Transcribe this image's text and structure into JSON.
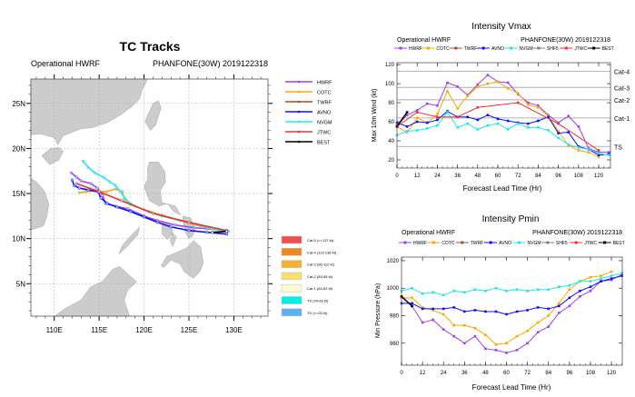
{
  "colors": {
    "HWRF": "#a040f0",
    "COTC": "#ffa500",
    "TWRF": "#a0522d",
    "AVNO": "#1010f0",
    "NVGM": "#20e8e8",
    "SHF5": "#808080",
    "JTWC": "#f03030",
    "BEST": "#000000"
  },
  "chart_data": [
    {
      "type": "line",
      "title": "TC Tracks",
      "subtitle_left": "Operational HWRF",
      "subtitle_right": "PHANFONE(30W) 2019122318",
      "xlim": [
        107.4,
        133.8
      ],
      "ylim": [
        1.4,
        27.7
      ],
      "x_ticks": [
        "110E",
        "115E",
        "120E",
        "125E",
        "130E"
      ],
      "x_tick_values": [
        110,
        115,
        120,
        125,
        130
      ],
      "y_ticks": [
        "5N",
        "10N",
        "15N",
        "20N",
        "25N"
      ],
      "y_tick_values": [
        5,
        10,
        15,
        20,
        25
      ],
      "grid": true,
      "legend": [
        "HWRF",
        "COTC",
        "TWRF",
        "AVNO",
        "NVGM",
        "JTWC",
        "BEST"
      ],
      "legend_placement": "right",
      "category_legend": [
        {
          "label": "Cat-5 (>=137 kt)",
          "color": "#f05050"
        },
        {
          "label": "Cat-4 (113-136 kt)",
          "color": "#f08820"
        },
        {
          "label": "Cat-3 (96-112 kt)",
          "color": "#f8b030"
        },
        {
          "label": "Cat-2 (83-95 kt)",
          "color": "#f8e070"
        },
        {
          "label": "Cat-1 (64-82 kt)",
          "color": "#fffcd0"
        },
        {
          "label": "TS (34-63 kt)",
          "color": "#00f0e8"
        },
        {
          "label": "TD (<=33 kt)",
          "color": "#60b0f8"
        }
      ],
      "series": [
        {
          "name": "HWRF",
          "points": [
            [
              129.2,
              10.9
            ],
            [
              127,
              11.1
            ],
            [
              125.6,
              11.2
            ],
            [
              123.5,
              11.5
            ],
            [
              121.5,
              12.0
            ],
            [
              120,
              12.5
            ],
            [
              118.2,
              13.3
            ],
            [
              116.8,
              13.6
            ],
            [
              115.7,
              13.9
            ],
            [
              115.4,
              14.8
            ],
            [
              114.8,
              15.6
            ],
            [
              114.1,
              16.1
            ],
            [
              113,
              16.4
            ],
            [
              112.5,
              16.8
            ],
            [
              111.9,
              17.3
            ]
          ]
        },
        {
          "name": "COTC",
          "points": [
            [
              129.2,
              10.8
            ],
            [
              126.5,
              11.3
            ],
            [
              124,
              12.0
            ],
            [
              122,
              12.6
            ],
            [
              120,
              13.2
            ],
            [
              118.5,
              13.8
            ],
            [
              117.8,
              14.4
            ],
            [
              117.6,
              15.2
            ],
            [
              116.8,
              15.5
            ],
            [
              115.8,
              15.2
            ],
            [
              114.5,
              15.3
            ],
            [
              113.5,
              15.2
            ],
            [
              112.8,
              15.1
            ]
          ]
        },
        {
          "name": "AVNO",
          "points": [
            [
              129.2,
              10.5
            ],
            [
              127,
              10.7
            ],
            [
              125,
              10.9
            ],
            [
              123,
              11.3
            ],
            [
              121.5,
              11.8
            ],
            [
              120,
              12.4
            ],
            [
              118.5,
              13.0
            ],
            [
              117,
              13.5
            ],
            [
              115.9,
              13.9
            ],
            [
              115.2,
              14.5
            ],
            [
              114.9,
              15.2
            ],
            [
              113.8,
              15.4
            ],
            [
              112.8,
              15.6
            ],
            [
              112.2,
              15.9
            ],
            [
              112,
              16.5
            ]
          ]
        },
        {
          "name": "NVGM",
          "points": [
            [
              129.4,
              10.8
            ],
            [
              127.5,
              11.1
            ],
            [
              125.8,
              11.6
            ],
            [
              124,
              12.0
            ],
            [
              122,
              12.5
            ],
            [
              120.5,
              13.0
            ],
            [
              119,
              13.6
            ],
            [
              118,
              14.3
            ],
            [
              117.4,
              15.2
            ],
            [
              116.8,
              15.9
            ],
            [
              116.2,
              16.3
            ],
            [
              115.5,
              16.8
            ],
            [
              114.5,
              17.3
            ],
            [
              113.8,
              17.9
            ],
            [
              113.2,
              18.6
            ]
          ]
        },
        {
          "name": "JTWC",
          "points": [
            [
              129.2,
              10.9
            ],
            [
              125,
              11.8
            ],
            [
              121,
              12.8
            ],
            [
              117.5,
              14.2
            ],
            [
              115,
              15.2
            ],
            [
              112.5,
              16.1
            ]
          ]
        },
        {
          "name": "BEST",
          "points": [
            [
              129.2,
              10.8
            ],
            [
              127.6,
              10.7
            ]
          ]
        }
      ]
    },
    {
      "type": "line",
      "title": "Intensity Vmax",
      "subtitle_left": "Operational HWRF",
      "subtitle_right": "PHANFONE(30W) 2019122318",
      "xlabel": "Forecast Lead Time (Hr)",
      "ylabel": "Max 10m Wind (kt)",
      "xlim": [
        0,
        127
      ],
      "ylim": [
        11.4,
        122
      ],
      "x_ticks": [
        0,
        12,
        24,
        36,
        48,
        60,
        72,
        84,
        96,
        108,
        120
      ],
      "y_ticks": [
        20,
        40,
        60,
        80,
        100,
        120
      ],
      "grid": false,
      "legend_placement": "top",
      "legend": [
        "HWRF",
        "COTC",
        "TWRF",
        "AVNO",
        "NVGM",
        "SHF5",
        "JTWC",
        "BEST"
      ],
      "reference_lines": [
        {
          "label": "Cat-4",
          "value": 113
        },
        {
          "label": "Cat-3",
          "value": 96
        },
        {
          "label": "Cat-2",
          "value": 83
        },
        {
          "label": "Cat-1",
          "value": 64
        },
        {
          "label": "TS",
          "value": 34
        }
      ],
      "series": [
        {
          "name": "HWRF",
          "x": [
            0,
            6,
            12,
            18,
            24,
            30,
            36,
            42,
            48,
            54,
            60,
            66,
            72,
            78,
            84,
            90,
            96,
            102,
            108,
            114,
            120,
            126
          ],
          "values": [
            56,
            67,
            72,
            79,
            77,
            101,
            97,
            88,
            99,
            109,
            102,
            101,
            89,
            80,
            77,
            67,
            59,
            66,
            55,
            32,
            28,
            28
          ]
        },
        {
          "name": "COTC",
          "x": [
            0,
            6,
            12,
            18,
            24,
            30,
            36,
            42,
            48,
            54,
            60,
            66,
            72,
            78,
            84,
            90,
            96,
            102,
            108,
            114,
            120
          ],
          "values": [
            55,
            49,
            64,
            59,
            68,
            92,
            74,
            87,
            97,
            100,
            102,
            95,
            90,
            78,
            75,
            66,
            50,
            35,
            30,
            28,
            23
          ]
        },
        {
          "name": "AVNO",
          "x": [
            0,
            6,
            12,
            18,
            24,
            30,
            36,
            42,
            48,
            54,
            60,
            66,
            72,
            78,
            84,
            90,
            96,
            102,
            108,
            114,
            120,
            126
          ],
          "values": [
            59,
            55,
            60,
            59,
            62,
            71,
            65,
            65,
            62,
            67,
            63,
            61,
            59,
            58,
            61,
            65,
            48,
            49,
            34,
            31,
            25,
            26
          ]
        },
        {
          "name": "NVGM",
          "x": [
            0,
            6,
            12,
            18,
            24,
            30,
            36,
            42,
            48,
            54,
            60,
            66,
            72,
            78,
            84,
            90,
            96,
            102,
            108,
            114,
            120,
            126
          ],
          "values": [
            46,
            50,
            51,
            53,
            56,
            70,
            54,
            58,
            52,
            56,
            58,
            52,
            58,
            54,
            54,
            51,
            43,
            36,
            33,
            31,
            27,
            25
          ]
        },
        {
          "name": "JTWC",
          "x": [
            0,
            12,
            24,
            36,
            48,
            72,
            96,
            120
          ],
          "values": [
            55,
            70,
            65,
            65,
            75,
            80,
            58,
            30
          ]
        },
        {
          "name": "BEST",
          "x": [
            0,
            6
          ],
          "values": [
            55,
            70
          ]
        }
      ]
    },
    {
      "type": "line",
      "title": "Intensity Pmin",
      "subtitle_left": "Operational HWRF",
      "subtitle_right": "PHANFONE(30W) 2019122318",
      "xlabel": "Forecast Lead Time (Hr)",
      "ylabel": "Min Pressure (hPa)",
      "xlim": [
        0,
        126.2
      ],
      "ylim": [
        944,
        1022.6
      ],
      "x_ticks": [
        0,
        12,
        24,
        36,
        48,
        60,
        72,
        84,
        96,
        108,
        120
      ],
      "y_ticks": [
        960,
        980,
        1000,
        1020
      ],
      "grid": false,
      "legend_placement": "top",
      "legend": [
        "HWRF",
        "COTC",
        "TWRF",
        "AVNO",
        "NVGM",
        "SHF5",
        "JTWC",
        "BEST"
      ],
      "series": [
        {
          "name": "HWRF",
          "x": [
            0,
            6,
            12,
            18,
            24,
            30,
            36,
            42,
            48,
            54,
            60,
            66,
            72,
            78,
            84,
            90,
            96,
            102,
            108,
            114,
            120,
            126
          ],
          "values": [
            994,
            987,
            975,
            977,
            970,
            965,
            960,
            965,
            956,
            955,
            953,
            955,
            960,
            968,
            972,
            982,
            987,
            994,
            998,
            1005,
            1006,
            1010
          ]
        },
        {
          "name": "COTC",
          "x": [
            0,
            6,
            12,
            18,
            24,
            30,
            36,
            42,
            48,
            54,
            60,
            66,
            72,
            78,
            84,
            90,
            96,
            102,
            108,
            114,
            120
          ],
          "values": [
            993,
            993,
            986,
            984,
            981,
            973,
            973,
            971,
            966,
            959,
            960,
            965,
            969,
            975,
            980,
            989,
            999,
            1005,
            1008,
            1009,
            1012
          ]
        },
        {
          "name": "AVNO",
          "x": [
            0,
            6,
            12,
            18,
            24,
            30,
            36,
            42,
            48,
            54,
            60,
            66,
            72,
            78,
            84,
            90,
            96,
            102,
            108,
            114,
            120,
            126
          ],
          "values": [
            989,
            989,
            985,
            985,
            985,
            986,
            983,
            984,
            983,
            983,
            981,
            983,
            984,
            986,
            985,
            987,
            993,
            998,
            1001,
            1005,
            1007,
            1009
          ]
        },
        {
          "name": "NVGM",
          "x": [
            0,
            6,
            12,
            18,
            24,
            30,
            36,
            42,
            48,
            54,
            60,
            66,
            72,
            78,
            84,
            90,
            96,
            102,
            108,
            114,
            120,
            126
          ],
          "values": [
            998,
            1000,
            996,
            997,
            995,
            998,
            997,
            999,
            998,
            1000,
            998,
            999,
            998,
            999,
            999,
            1001,
            1002,
            1005,
            1005,
            1007,
            1009,
            1011
          ]
        },
        {
          "name": "BEST",
          "x": [
            0,
            6
          ],
          "values": [
            994,
            987
          ]
        }
      ]
    }
  ]
}
